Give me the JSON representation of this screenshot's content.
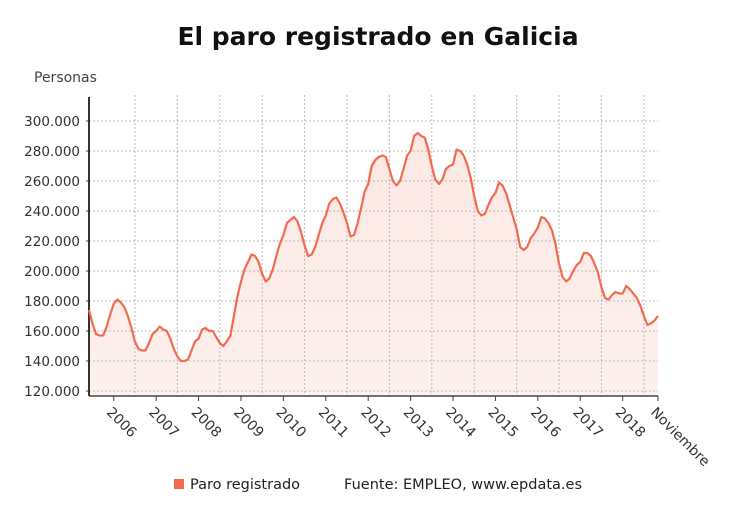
{
  "chart_data": {
    "type": "area",
    "title": "El paro registrado en Galicia",
    "ylabel": "Personas",
    "xlabel": "",
    "start_month": "2005-06",
    "end_month": "2018-11",
    "x_tick_labels": [
      "2006",
      "2007",
      "2008",
      "2009",
      "2010",
      "2011",
      "2012",
      "2013",
      "2014",
      "2015",
      "2016",
      "2017",
      "2018",
      "Noviembre"
    ],
    "y_tick_labels": [
      "120.000",
      "140.000",
      "160.000",
      "180.000",
      "200.000",
      "220.000",
      "240.000",
      "260.000",
      "280.000",
      "300.000"
    ],
    "ylim": [
      120000,
      300000
    ],
    "grid": true,
    "legend_position": "bottom",
    "source": "Fuente: EMPLEO, www.epdata.es",
    "line_color": "#f26a4f",
    "series": [
      {
        "name": "Paro registrado",
        "values": [
          174000,
          165000,
          158000,
          157000,
          157000,
          163000,
          171000,
          178000,
          181000,
          179000,
          176000,
          170000,
          162000,
          153000,
          148000,
          147000,
          147000,
          152000,
          158000,
          160000,
          163000,
          161000,
          160000,
          155000,
          148000,
          143000,
          140000,
          140000,
          141000,
          147000,
          153000,
          155000,
          161000,
          162000,
          160000,
          160000,
          156000,
          152000,
          150000,
          153000,
          157000,
          170000,
          183000,
          193000,
          201000,
          206000,
          211000,
          210000,
          206000,
          198000,
          193000,
          195000,
          201000,
          210000,
          218000,
          224000,
          232000,
          234000,
          236000,
          233000,
          226000,
          217000,
          210000,
          211000,
          216000,
          224000,
          232000,
          237000,
          245000,
          248000,
          249000,
          245000,
          239000,
          232000,
          223000,
          224000,
          232000,
          242000,
          253000,
          258000,
          270000,
          274000,
          276000,
          277000,
          276000,
          268000,
          260000,
          257000,
          260000,
          268000,
          277000,
          280000,
          290000,
          292000,
          290000,
          289000,
          281000,
          270000,
          261000,
          258000,
          261000,
          268000,
          270000,
          271000,
          281000,
          280000,
          277000,
          271000,
          262000,
          250000,
          240000,
          237000,
          238000,
          244000,
          249000,
          252000,
          259000,
          257000,
          252000,
          244000,
          236000,
          228000,
          216000,
          214000,
          216000,
          222000,
          225000,
          229000,
          236000,
          235000,
          232000,
          227000,
          218000,
          205000,
          196000,
          193000,
          195000,
          200000,
          204000,
          206000,
          212000,
          212000,
          210000,
          205000,
          199000,
          189000,
          182000,
          181000,
          184000,
          186000,
          185000,
          185000,
          190000,
          188000,
          185000,
          182000,
          177000,
          170000,
          164000,
          165000,
          167000,
          170000
        ]
      }
    ]
  }
}
